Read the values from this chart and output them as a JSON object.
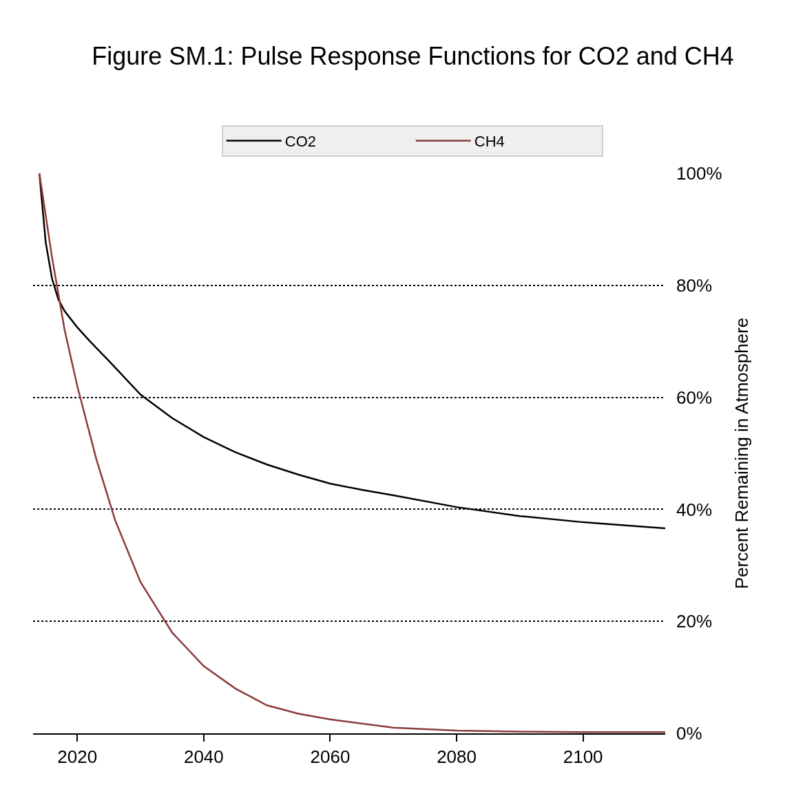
{
  "chart_data": {
    "type": "line",
    "title": "Figure SM.1: Pulse Response Functions for CO2 and CH4",
    "ylabel": "Percent Remaining in Atmosphere",
    "xlim": [
      2013,
      2113
    ],
    "xticks": [
      2020,
      2040,
      2060,
      2080,
      2100
    ],
    "ylim": [
      0,
      100
    ],
    "yticks": [
      {
        "value": 0,
        "label": "0%"
      },
      {
        "value": 20,
        "label": "20%"
      },
      {
        "value": 40,
        "label": "40%"
      },
      {
        "value": 60,
        "label": "60%"
      },
      {
        "value": 80,
        "label": "80%"
      },
      {
        "value": 100,
        "label": "100%"
      }
    ],
    "grid": "y",
    "legend": "top",
    "marker": "none",
    "line_style": "solid",
    "series": [
      {
        "name": "CO2",
        "color": "#000000",
        "x": [
          2014,
          2015,
          2016,
          2017,
          2018,
          2020,
          2022,
          2025,
          2030,
          2035,
          2040,
          2045,
          2050,
          2055,
          2060,
          2065,
          2070,
          2080,
          2090,
          2100,
          2113
        ],
        "values": [
          100,
          87.7,
          81.2,
          77.5,
          75.4,
          72.5,
          70,
          66.5,
          60.5,
          56.3,
          52.9,
          50.2,
          48,
          46.2,
          44.6,
          43.5,
          42.5,
          40.4,
          38.8,
          37.7,
          36.6
        ]
      },
      {
        "name": "CH4",
        "color": "#8b3a3a",
        "x": [
          2014,
          2016,
          2018,
          2020,
          2023,
          2026,
          2030,
          2035,
          2040,
          2045,
          2050,
          2055,
          2060,
          2070,
          2080,
          2090,
          2100,
          2113
        ],
        "values": [
          100,
          85,
          72,
          62,
          49,
          38,
          27,
          18,
          12,
          8,
          5,
          3.5,
          2.5,
          1,
          0.5,
          0.3,
          0.2,
          0.2
        ]
      }
    ]
  }
}
